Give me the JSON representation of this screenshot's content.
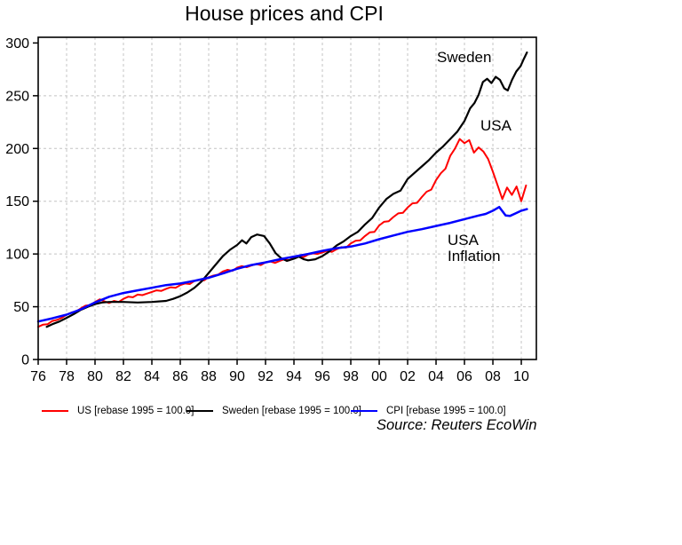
{
  "title": "House prices and CPI",
  "source_note": "Source: Reuters EcoWin",
  "annotations": {
    "sweden": "Sweden",
    "usa": "USA",
    "inflation_line1": "USA",
    "inflation_line2": "Inflation"
  },
  "legend": [
    {
      "label": "US [rebase 1995 = 100.0]",
      "color": "#ff0000"
    },
    {
      "label": "Sweden [rebase 1995 = 100.0]",
      "color": "#000000"
    },
    {
      "label": "CPI [rebase 1995 = 100.0]",
      "color": "#0000ff"
    }
  ],
  "colors": {
    "grid": "#c4c4c4",
    "axis": "#000000",
    "background": "#ffffff"
  },
  "chart_data": {
    "type": "line",
    "title": "House prices and CPI",
    "xlabel": "",
    "ylabel": "",
    "grid": true,
    "legend_position": "bottom",
    "x_axis": {
      "range": [
        1976,
        2011.06
      ],
      "ticks": [
        1976,
        1978,
        1980,
        1982,
        1984,
        1986,
        1988,
        1990,
        1992,
        1994,
        1996,
        1998,
        2000,
        2002,
        2004,
        2006,
        2008,
        2010
      ],
      "tick_labels": [
        "76",
        "78",
        "80",
        "82",
        "84",
        "86",
        "88",
        "90",
        "92",
        "94",
        "96",
        "98",
        "00",
        "02",
        "04",
        "06",
        "08",
        "10"
      ]
    },
    "y_axis": {
      "range": [
        0,
        305.4
      ],
      "ticks": [
        0,
        50,
        100,
        150,
        200,
        250,
        300
      ],
      "tick_labels": [
        "0",
        "50",
        "100",
        "150",
        "200",
        "250",
        "300"
      ],
      "gridline_ticks": [
        50,
        100,
        150,
        200,
        250
      ]
    },
    "series": [
      {
        "name": "US [rebase 1995 = 100.0]",
        "color": "#ff0000",
        "width": 2,
        "x_start": 1976.0,
        "x_step": 0.33333,
        "values": [
          31.0,
          33.0,
          33.5,
          36.5,
          37.5,
          39.5,
          42.5,
          44.5,
          45.5,
          48.5,
          51.0,
          51.5,
          54.5,
          57.0,
          55.0,
          53.5,
          55.5,
          54.5,
          57.5,
          59.5,
          59.0,
          61.5,
          61.0,
          62.5,
          64.0,
          65.5,
          65.0,
          67.0,
          68.5,
          68.0,
          70.5,
          72.0,
          71.5,
          74.5,
          75.5,
          75.0,
          78.0,
          79.5,
          80.5,
          83.5,
          85.0,
          84.0,
          87.0,
          88.5,
          87.5,
          89.0,
          90.5,
          89.5,
          92.0,
          93.0,
          91.5,
          93.5,
          95.0,
          94.0,
          96.5,
          98.0,
          97.0,
          99.5,
          100.5,
          100.0,
          101.5,
          103.0,
          102.0,
          104.5,
          106.5,
          106.0,
          110.0,
          112.5,
          113.0,
          117.0,
          120.5,
          121.0,
          127.0,
          130.5,
          131.0,
          135.0,
          138.5,
          139.0,
          144.0,
          148.0,
          148.5,
          154.0,
          159.0,
          161.0,
          170.0,
          176.5,
          181.0,
          193.0,
          200.0,
          209.0,
          205.0,
          208.0,
          196.0,
          201.0,
          197.0,
          190.0,
          178.0,
          165.0,
          152.0,
          163.0,
          156.0,
          164.0,
          150.0,
          165.0
        ]
      },
      {
        "name": "Sweden [rebase 1995 = 100.0]",
        "color": "#000000",
        "width": 2.2,
        "points": [
          [
            1976.6,
            31
          ],
          [
            1977,
            33.5
          ],
          [
            1977.5,
            36
          ],
          [
            1978,
            39.5
          ],
          [
            1978.5,
            43
          ],
          [
            1979,
            47
          ],
          [
            1979.5,
            50
          ],
          [
            1980,
            52.5
          ],
          [
            1980.5,
            54
          ],
          [
            1981,
            54.5
          ],
          [
            1982,
            54.5
          ],
          [
            1983,
            54
          ],
          [
            1984,
            54.5
          ],
          [
            1985,
            55.5
          ],
          [
            1985.5,
            57.5
          ],
          [
            1986,
            60
          ],
          [
            1986.5,
            63.5
          ],
          [
            1987,
            68
          ],
          [
            1987.5,
            74
          ],
          [
            1988,
            82
          ],
          [
            1988.5,
            90
          ],
          [
            1989,
            98
          ],
          [
            1989.5,
            104
          ],
          [
            1990,
            108.5
          ],
          [
            1990.35,
            113
          ],
          [
            1990.65,
            110
          ],
          [
            1991,
            116
          ],
          [
            1991.4,
            118.5
          ],
          [
            1991.9,
            117
          ],
          [
            1992.3,
            110
          ],
          [
            1992.7,
            101
          ],
          [
            1993.1,
            96
          ],
          [
            1993.5,
            93.5
          ],
          [
            1994,
            95.5
          ],
          [
            1994.35,
            97.5
          ],
          [
            1994.7,
            95
          ],
          [
            1995,
            94
          ],
          [
            1995.5,
            95
          ],
          [
            1996,
            98
          ],
          [
            1996.5,
            102.5
          ],
          [
            1997,
            108
          ],
          [
            1997.5,
            112
          ],
          [
            1998,
            117
          ],
          [
            1998.5,
            121
          ],
          [
            1999,
            128
          ],
          [
            1999.5,
            134
          ],
          [
            2000,
            144
          ],
          [
            2000.5,
            152
          ],
          [
            2001,
            157
          ],
          [
            2001.5,
            160
          ],
          [
            2002,
            171
          ],
          [
            2002.5,
            177
          ],
          [
            2003,
            183
          ],
          [
            2003.5,
            189
          ],
          [
            2004,
            196
          ],
          [
            2004.5,
            202
          ],
          [
            2005,
            209
          ],
          [
            2005.5,
            216
          ],
          [
            2006,
            226
          ],
          [
            2006.4,
            238
          ],
          [
            2006.7,
            243
          ],
          [
            2007,
            251
          ],
          [
            2007.3,
            263
          ],
          [
            2007.6,
            266
          ],
          [
            2007.9,
            262
          ],
          [
            2008.2,
            268
          ],
          [
            2008.5,
            265
          ],
          [
            2008.8,
            257
          ],
          [
            2009.05,
            255
          ],
          [
            2009.35,
            265
          ],
          [
            2009.65,
            273
          ],
          [
            2009.95,
            278
          ],
          [
            2010.15,
            284
          ],
          [
            2010.4,
            291
          ]
        ]
      },
      {
        "name": "CPI [rebase 1995 = 100.0]",
        "color": "#0000ff",
        "width": 2.5,
        "points": [
          [
            1976,
            36
          ],
          [
            1977,
            39
          ],
          [
            1978,
            42.5
          ],
          [
            1979,
            47.5
          ],
          [
            1980,
            54
          ],
          [
            1981,
            59.5
          ],
          [
            1982,
            63
          ],
          [
            1983,
            65.5
          ],
          [
            1984,
            68
          ],
          [
            1985,
            70.5
          ],
          [
            1986,
            72
          ],
          [
            1987,
            74.5
          ],
          [
            1988,
            77.5
          ],
          [
            1989,
            81.5
          ],
          [
            1990,
            86
          ],
          [
            1991,
            89.5
          ],
          [
            1992,
            92
          ],
          [
            1993,
            95
          ],
          [
            1994,
            97.5
          ],
          [
            1995,
            100
          ],
          [
            1996,
            103
          ],
          [
            1997,
            105.5
          ],
          [
            1998,
            107
          ],
          [
            1999,
            110
          ],
          [
            2000,
            114
          ],
          [
            2001,
            117.5
          ],
          [
            2002,
            121
          ],
          [
            2003,
            123.5
          ],
          [
            2004,
            126.5
          ],
          [
            2005,
            129.5
          ],
          [
            2006,
            133
          ],
          [
            2007,
            136.5
          ],
          [
            2007.5,
            138
          ],
          [
            2008,
            141
          ],
          [
            2008.45,
            144.5
          ],
          [
            2008.9,
            136.5
          ],
          [
            2009.2,
            136
          ],
          [
            2009.6,
            138.5
          ],
          [
            2010,
            141
          ],
          [
            2010.4,
            142.5
          ]
        ]
      }
    ]
  }
}
